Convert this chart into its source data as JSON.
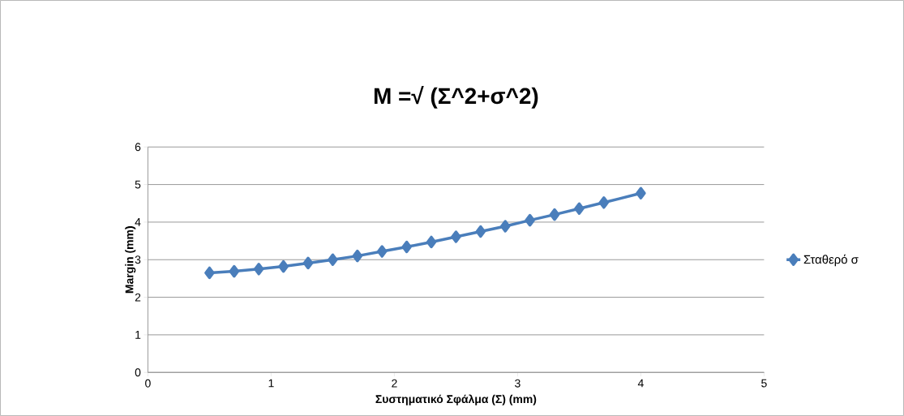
{
  "chart_data": {
    "type": "line",
    "title": "M =√  (Σ^2+σ^2)",
    "xlabel": "Συστηματικό Σφάλμα (Σ) (mm)",
    "ylabel": "Margin (mm)",
    "x": [
      0.5,
      0.7,
      0.9,
      1.1,
      1.3,
      1.5,
      1.7,
      1.9,
      2.1,
      2.3,
      2.5,
      2.7,
      2.9,
      3.1,
      3.3,
      3.5,
      3.7,
      4.0
    ],
    "series": [
      {
        "name": "Σταθερό σ",
        "color": "#4a7ebb",
        "values": [
          2.65,
          2.69,
          2.75,
          2.82,
          2.91,
          3.0,
          3.1,
          3.22,
          3.34,
          3.47,
          3.61,
          3.75,
          3.89,
          4.05,
          4.2,
          4.36,
          4.52,
          4.77
        ]
      }
    ],
    "xlim": [
      0,
      5
    ],
    "ylim": [
      0,
      6
    ],
    "xticks": [
      0,
      1,
      2,
      3,
      4,
      5
    ],
    "yticks": [
      0,
      1,
      2,
      3,
      4,
      5,
      6
    ],
    "grid": "y",
    "legend": "right",
    "marker": "diamond",
    "line_style": "solid"
  }
}
